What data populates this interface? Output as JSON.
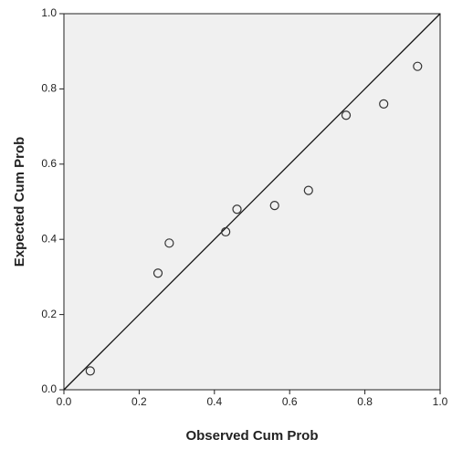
{
  "chart_data": {
    "type": "scatter",
    "x_label": "Observed Cum Prob",
    "y_label": "Expected Cum Prob",
    "x": [
      0.07,
      0.25,
      0.28,
      0.43,
      0.46,
      0.56,
      0.65,
      0.75,
      0.85,
      0.94
    ],
    "values": [
      0.05,
      0.31,
      0.39,
      0.42,
      0.48,
      0.49,
      0.53,
      0.73,
      0.76,
      0.86
    ],
    "color": "#333333",
    "xlim": [
      0,
      1
    ],
    "ylim": [
      0,
      1
    ],
    "xticks": [
      {
        "value": 0,
        "label": "0.0"
      },
      0.2,
      0.4,
      0.6,
      0.8,
      {
        "value": 1,
        "label": "1.0"
      }
    ],
    "yticks": [
      {
        "value": 0,
        "label": "0.0"
      },
      0.2,
      0.4,
      0.6,
      0.8,
      {
        "value": 1,
        "label": "1.0"
      }
    ],
    "reference_line": true
  }
}
